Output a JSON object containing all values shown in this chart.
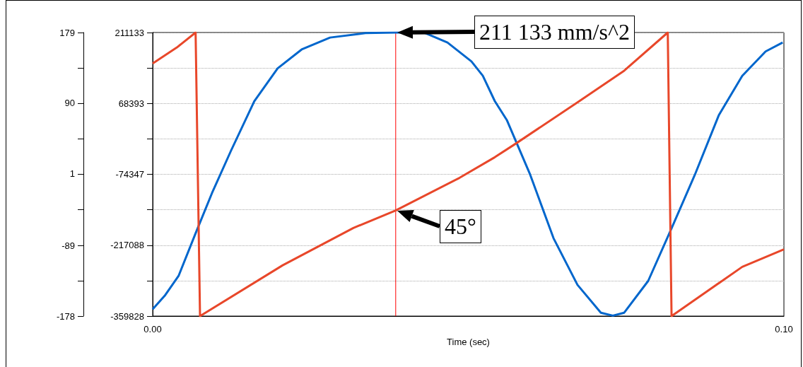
{
  "chart_data": {
    "type": "line",
    "xlabel": "Time (sec)",
    "xlim": [
      0,
      0.1
    ],
    "xticks": [
      {
        "value": 0,
        "label": "0.00"
      },
      {
        "value": 0.1,
        "label": "0.10"
      }
    ],
    "ylim": [
      -359828,
      211133
    ],
    "yticks": [
      -359828,
      {
        "value": -288458,
        "label": null
      },
      -217088,
      {
        "value": -145718,
        "label": null
      },
      -74347,
      {
        "value": -2977,
        "label": null
      },
      68393,
      {
        "value": 139763,
        "label": null
      },
      211133
    ],
    "y2lim": [
      -178,
      179
    ],
    "y2ticks": [
      -178,
      {
        "value": -133.5,
        "label": null
      },
      -89,
      {
        "value": -44,
        "label": null
      },
      1,
      {
        "value": 45.5,
        "label": null
      },
      90,
      {
        "value": 134.5,
        "label": null
      },
      179
    ],
    "grid": "y",
    "marker": "none",
    "line_style": "solid",
    "series": [
      {
        "color": "#0066cc",
        "x": [
          0,
          0.0019,
          0.0041,
          0.0068,
          0.0094,
          0.0124,
          0.0161,
          0.0198,
          0.0236,
          0.0281,
          0.0337,
          0.0385,
          0.043,
          0.0467,
          0.0505,
          0.0523,
          0.0542,
          0.0561,
          0.0598,
          0.0635,
          0.0673,
          0.071,
          0.0729,
          0.0747,
          0.0785,
          0.0822,
          0.0859,
          0.0897,
          0.0934,
          0.0971,
          0.0998
        ],
        "values": [
          -346000,
          -319000,
          -279000,
          -193000,
          -112000,
          -27000,
          73000,
          139000,
          177000,
          201000,
          210000,
          211133,
          211000,
          191000,
          153000,
          124000,
          73000,
          35000,
          -75000,
          -203000,
          -297000,
          -353000,
          -359000,
          -353000,
          -289000,
          -183000,
          -75000,
          45000,
          124000,
          173000,
          191000
        ]
      },
      {
        "color": "#e8472a",
        "axis": "y2",
        "x": [
          0,
          0.0038,
          0.0068,
          0.0075,
          0.0206,
          0.0318,
          0.0385,
          0.0486,
          0.0542,
          0.0573,
          0.0673,
          0.0747,
          0.0816,
          0.0822,
          0.0934,
          0.1
        ],
        "values": [
          140,
          160,
          179,
          -178,
          -114,
          -67,
          -45,
          -4,
          22,
          38,
          91,
          131,
          179,
          -178,
          -116,
          -94
        ]
      }
    ],
    "ref_lines": [
      {
        "axis": "x",
        "value": 0.0385,
        "color": "#ff0000"
      }
    ],
    "annotations": [
      "211 133 mm/s^2",
      "45°"
    ]
  }
}
